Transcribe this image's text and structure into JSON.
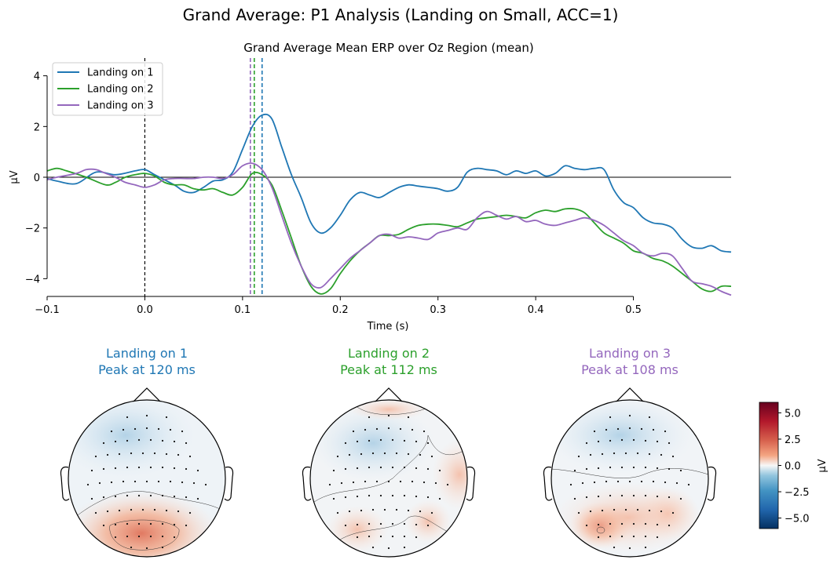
{
  "suptitle": "Grand Average: P1 Analysis (Landing on Small, ACC=1)",
  "chart_data": {
    "type": "line",
    "title": "Grand Average Mean ERP over Oz Region (mean)",
    "xlabel": "Time (s)",
    "ylabel": "µV",
    "xlim": [
      -0.1,
      0.6
    ],
    "ylim": [
      -4.7,
      4.7
    ],
    "xticks": [
      -0.1,
      0.0,
      0.1,
      0.2,
      0.3,
      0.4,
      0.5
    ],
    "xtick_labels": [
      "−0.1",
      "0.0",
      "0.1",
      "0.2",
      "0.3",
      "0.4",
      "0.5"
    ],
    "yticks": [
      -4,
      -2,
      0,
      2,
      4
    ],
    "ytick_labels": [
      "−4",
      "−2",
      "0",
      "2",
      "4"
    ],
    "legend_position": "top-left",
    "stimulus_onset": 0.0,
    "series": [
      {
        "name": "Landing on 1",
        "color": "#1f77b4",
        "peak_latency": 0.12,
        "points": [
          [
            -0.1,
            -0.05
          ],
          [
            -0.09,
            -0.15
          ],
          [
            -0.07,
            -0.25
          ],
          [
            -0.05,
            0.2
          ],
          [
            -0.03,
            0.1
          ],
          [
            -0.01,
            0.25
          ],
          [
            0.0,
            0.3
          ],
          [
            0.01,
            0.1
          ],
          [
            0.03,
            -0.3
          ],
          [
            0.04,
            -0.55
          ],
          [
            0.05,
            -0.6
          ],
          [
            0.06,
            -0.4
          ],
          [
            0.07,
            -0.15
          ],
          [
            0.08,
            -0.1
          ],
          [
            0.09,
            0.2
          ],
          [
            0.1,
            1.1
          ],
          [
            0.11,
            2.0
          ],
          [
            0.12,
            2.45
          ],
          [
            0.13,
            2.3
          ],
          [
            0.14,
            1.2
          ],
          [
            0.15,
            0.1
          ],
          [
            0.16,
            -0.8
          ],
          [
            0.17,
            -1.8
          ],
          [
            0.18,
            -2.2
          ],
          [
            0.19,
            -2.0
          ],
          [
            0.2,
            -1.5
          ],
          [
            0.21,
            -0.9
          ],
          [
            0.22,
            -0.6
          ],
          [
            0.23,
            -0.7
          ],
          [
            0.24,
            -0.8
          ],
          [
            0.25,
            -0.6
          ],
          [
            0.26,
            -0.4
          ],
          [
            0.27,
            -0.3
          ],
          [
            0.28,
            -0.35
          ],
          [
            0.29,
            -0.4
          ],
          [
            0.3,
            -0.45
          ],
          [
            0.31,
            -0.55
          ],
          [
            0.32,
            -0.4
          ],
          [
            0.33,
            0.2
          ],
          [
            0.34,
            0.35
          ],
          [
            0.35,
            0.3
          ],
          [
            0.36,
            0.25
          ],
          [
            0.37,
            0.1
          ],
          [
            0.38,
            0.25
          ],
          [
            0.39,
            0.15
          ],
          [
            0.4,
            0.25
          ],
          [
            0.41,
            0.05
          ],
          [
            0.42,
            0.15
          ],
          [
            0.43,
            0.45
          ],
          [
            0.44,
            0.35
          ],
          [
            0.45,
            0.3
          ],
          [
            0.46,
            0.35
          ],
          [
            0.47,
            0.3
          ],
          [
            0.48,
            -0.5
          ],
          [
            0.49,
            -1.0
          ],
          [
            0.5,
            -1.2
          ],
          [
            0.51,
            -1.6
          ],
          [
            0.52,
            -1.8
          ],
          [
            0.53,
            -1.85
          ],
          [
            0.54,
            -2.0
          ],
          [
            0.55,
            -2.45
          ],
          [
            0.56,
            -2.75
          ],
          [
            0.57,
            -2.8
          ],
          [
            0.58,
            -2.7
          ],
          [
            0.59,
            -2.9
          ],
          [
            0.6,
            -2.95
          ]
        ]
      },
      {
        "name": "Landing on 2",
        "color": "#2ca02c",
        "peak_latency": 0.112,
        "points": [
          [
            -0.1,
            0.25
          ],
          [
            -0.09,
            0.35
          ],
          [
            -0.08,
            0.25
          ],
          [
            -0.06,
            0.0
          ],
          [
            -0.04,
            -0.3
          ],
          [
            -0.03,
            -0.2
          ],
          [
            -0.02,
            0.0
          ],
          [
            -0.01,
            0.1
          ],
          [
            0.0,
            0.15
          ],
          [
            0.01,
            0.05
          ],
          [
            0.02,
            -0.2
          ],
          [
            0.03,
            -0.3
          ],
          [
            0.04,
            -0.3
          ],
          [
            0.05,
            -0.45
          ],
          [
            0.06,
            -0.5
          ],
          [
            0.07,
            -0.45
          ],
          [
            0.08,
            -0.6
          ],
          [
            0.09,
            -0.7
          ],
          [
            0.1,
            -0.4
          ],
          [
            0.11,
            0.15
          ],
          [
            0.12,
            0.1
          ],
          [
            0.13,
            -0.3
          ],
          [
            0.14,
            -1.3
          ],
          [
            0.15,
            -2.4
          ],
          [
            0.16,
            -3.5
          ],
          [
            0.17,
            -4.3
          ],
          [
            0.18,
            -4.6
          ],
          [
            0.19,
            -4.4
          ],
          [
            0.2,
            -3.8
          ],
          [
            0.21,
            -3.3
          ],
          [
            0.22,
            -2.9
          ],
          [
            0.23,
            -2.6
          ],
          [
            0.24,
            -2.3
          ],
          [
            0.25,
            -2.3
          ],
          [
            0.26,
            -2.25
          ],
          [
            0.27,
            -2.05
          ],
          [
            0.28,
            -1.9
          ],
          [
            0.29,
            -1.85
          ],
          [
            0.3,
            -1.85
          ],
          [
            0.31,
            -1.9
          ],
          [
            0.32,
            -1.95
          ],
          [
            0.33,
            -1.8
          ],
          [
            0.34,
            -1.65
          ],
          [
            0.35,
            -1.6
          ],
          [
            0.36,
            -1.55
          ],
          [
            0.37,
            -1.5
          ],
          [
            0.38,
            -1.55
          ],
          [
            0.39,
            -1.6
          ],
          [
            0.4,
            -1.4
          ],
          [
            0.41,
            -1.3
          ],
          [
            0.42,
            -1.35
          ],
          [
            0.43,
            -1.25
          ],
          [
            0.44,
            -1.25
          ],
          [
            0.45,
            -1.4
          ],
          [
            0.46,
            -1.8
          ],
          [
            0.47,
            -2.2
          ],
          [
            0.48,
            -2.4
          ],
          [
            0.49,
            -2.6
          ],
          [
            0.5,
            -2.9
          ],
          [
            0.51,
            -3.0
          ],
          [
            0.52,
            -3.2
          ],
          [
            0.53,
            -3.3
          ],
          [
            0.54,
            -3.5
          ],
          [
            0.55,
            -3.8
          ],
          [
            0.56,
            -4.1
          ],
          [
            0.57,
            -4.4
          ],
          [
            0.58,
            -4.5
          ],
          [
            0.59,
            -4.3
          ],
          [
            0.6,
            -4.3
          ]
        ]
      },
      {
        "name": "Landing on 3",
        "color": "#9467bd",
        "peak_latency": 0.108,
        "points": [
          [
            -0.1,
            -0.1
          ],
          [
            -0.09,
            0.0
          ],
          [
            -0.07,
            0.15
          ],
          [
            -0.06,
            0.3
          ],
          [
            -0.05,
            0.3
          ],
          [
            -0.04,
            0.15
          ],
          [
            -0.03,
            0.0
          ],
          [
            -0.02,
            -0.2
          ],
          [
            -0.01,
            -0.3
          ],
          [
            0.0,
            -0.4
          ],
          [
            0.01,
            -0.3
          ],
          [
            0.02,
            -0.1
          ],
          [
            0.03,
            -0.05
          ],
          [
            0.04,
            -0.05
          ],
          [
            0.05,
            -0.05
          ],
          [
            0.06,
            0.0
          ],
          [
            0.07,
            0.0
          ],
          [
            0.08,
            -0.05
          ],
          [
            0.09,
            0.1
          ],
          [
            0.1,
            0.45
          ],
          [
            0.11,
            0.55
          ],
          [
            0.12,
            0.3
          ],
          [
            0.13,
            -0.4
          ],
          [
            0.14,
            -1.5
          ],
          [
            0.15,
            -2.6
          ],
          [
            0.16,
            -3.5
          ],
          [
            0.17,
            -4.2
          ],
          [
            0.18,
            -4.35
          ],
          [
            0.19,
            -4.0
          ],
          [
            0.2,
            -3.6
          ],
          [
            0.21,
            -3.2
          ],
          [
            0.22,
            -2.9
          ],
          [
            0.23,
            -2.6
          ],
          [
            0.24,
            -2.3
          ],
          [
            0.25,
            -2.25
          ],
          [
            0.26,
            -2.4
          ],
          [
            0.27,
            -2.35
          ],
          [
            0.28,
            -2.4
          ],
          [
            0.29,
            -2.45
          ],
          [
            0.3,
            -2.2
          ],
          [
            0.31,
            -2.1
          ],
          [
            0.32,
            -2.0
          ],
          [
            0.33,
            -2.05
          ],
          [
            0.34,
            -1.6
          ],
          [
            0.35,
            -1.35
          ],
          [
            0.36,
            -1.5
          ],
          [
            0.37,
            -1.65
          ],
          [
            0.38,
            -1.55
          ],
          [
            0.39,
            -1.75
          ],
          [
            0.4,
            -1.7
          ],
          [
            0.41,
            -1.85
          ],
          [
            0.42,
            -1.9
          ],
          [
            0.43,
            -1.8
          ],
          [
            0.44,
            -1.7
          ],
          [
            0.45,
            -1.6
          ],
          [
            0.46,
            -1.7
          ],
          [
            0.47,
            -1.9
          ],
          [
            0.48,
            -2.2
          ],
          [
            0.49,
            -2.5
          ],
          [
            0.5,
            -2.7
          ],
          [
            0.51,
            -3.0
          ],
          [
            0.52,
            -3.1
          ],
          [
            0.53,
            -3.0
          ],
          [
            0.54,
            -3.1
          ],
          [
            0.55,
            -3.6
          ],
          [
            0.56,
            -4.1
          ],
          [
            0.57,
            -4.2
          ],
          [
            0.58,
            -4.3
          ],
          [
            0.59,
            -4.5
          ],
          [
            0.6,
            -4.65
          ]
        ]
      }
    ]
  },
  "topomaps": [
    {
      "title": "Landing on 1",
      "subtitle": "Peak at 120 ms",
      "color": "#1f77b4"
    },
    {
      "title": "Landing on 2",
      "subtitle": "Peak at 112 ms",
      "color": "#2ca02c"
    },
    {
      "title": "Landing on 3",
      "subtitle": "Peak at 108 ms",
      "color": "#9467bd"
    }
  ],
  "colorbar": {
    "label": "µV",
    "ticks": [
      "5.0",
      "2.5",
      "0.0",
      "−2.5",
      "−5.0"
    ],
    "tick_values": [
      5.0,
      2.5,
      0.0,
      -2.5,
      -5.0
    ],
    "range": [
      -6.0,
      6.0
    ]
  }
}
